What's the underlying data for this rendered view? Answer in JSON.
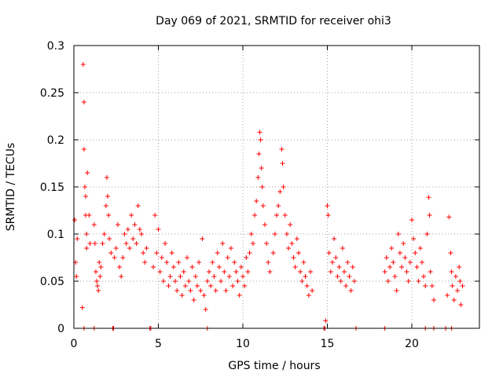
{
  "chart_data": {
    "type": "scatter",
    "title": "Day 069 of 2021, SRMTID for receiver ohi3",
    "xlabel": "GPS time / hours",
    "ylabel": "SRMTID / TECUs",
    "xlim": [
      0,
      24
    ],
    "ylim": [
      0,
      0.3
    ],
    "x_ticks": [
      0,
      5,
      10,
      15,
      20
    ],
    "x_tick_labels": [
      "0",
      "5",
      "10",
      "15",
      "20"
    ],
    "y_ticks": [
      0,
      0.05,
      0.1,
      0.15,
      0.2,
      0.25,
      0.3
    ],
    "y_tick_labels": [
      "0",
      "0.05",
      "0.1",
      "0.15",
      "0.2",
      "0.25",
      "0.3"
    ],
    "grid": true,
    "marker": "+",
    "series_color": "#ff0000",
    "series": [
      {
        "name": "SRMTID",
        "points": [
          [
            0.05,
            0.115
          ],
          [
            0.1,
            0.07
          ],
          [
            0.15,
            0.055
          ],
          [
            0.2,
            0.095
          ],
          [
            0.5,
            0.022
          ],
          [
            0.55,
            0.28
          ],
          [
            0.6,
            0.24
          ],
          [
            0.6,
            0.19
          ],
          [
            0.65,
            0.15
          ],
          [
            0.7,
            0.14
          ],
          [
            0.7,
            0.12
          ],
          [
            0.75,
            0.1
          ],
          [
            0.8,
            0.165
          ],
          [
            0.75,
            0.085
          ],
          [
            0.9,
            0.12
          ],
          [
            0.95,
            0.09
          ],
          [
            1.2,
            0.11
          ],
          [
            1.25,
            0.09
          ],
          [
            1.3,
            0.06
          ],
          [
            1.35,
            0.05
          ],
          [
            1.4,
            0.045
          ],
          [
            1.45,
            0.04
          ],
          [
            1.5,
            0.07
          ],
          [
            1.55,
            0.055
          ],
          [
            1.6,
            0.065
          ],
          [
            1.7,
            0.09
          ],
          [
            1.8,
            0.1
          ],
          [
            1.9,
            0.13
          ],
          [
            1.95,
            0.16
          ],
          [
            2.0,
            0.14
          ],
          [
            2.05,
            0.12
          ],
          [
            2.1,
            0.095
          ],
          [
            2.2,
            0.08
          ],
          [
            2.4,
            0.075
          ],
          [
            2.5,
            0.085
          ],
          [
            2.6,
            0.11
          ],
          [
            2.7,
            0.065
          ],
          [
            2.8,
            0.055
          ],
          [
            2.9,
            0.075
          ],
          [
            3.0,
            0.1
          ],
          [
            3.1,
            0.09
          ],
          [
            3.2,
            0.105
          ],
          [
            3.3,
            0.085
          ],
          [
            3.4,
            0.12
          ],
          [
            3.5,
            0.095
          ],
          [
            3.6,
            0.11
          ],
          [
            3.7,
            0.09
          ],
          [
            3.8,
            0.13
          ],
          [
            3.9,
            0.105
          ],
          [
            4.0,
            0.1
          ],
          [
            4.1,
            0.08
          ],
          [
            4.2,
            0.07
          ],
          [
            4.3,
            0.085
          ],
          [
            4.7,
            0.065
          ],
          [
            4.8,
            0.12
          ],
          [
            4.9,
            0.08
          ],
          [
            5.0,
            0.105
          ],
          [
            5.1,
            0.06
          ],
          [
            5.2,
            0.075
          ],
          [
            5.3,
            0.05
          ],
          [
            5.4,
            0.09
          ],
          [
            5.5,
            0.07
          ],
          [
            5.6,
            0.045
          ],
          [
            5.7,
            0.055
          ],
          [
            5.8,
            0.08
          ],
          [
            5.9,
            0.065
          ],
          [
            6.0,
            0.05
          ],
          [
            6.1,
            0.04
          ],
          [
            6.2,
            0.07
          ],
          [
            6.3,
            0.055
          ],
          [
            6.4,
            0.035
          ],
          [
            6.5,
            0.06
          ],
          [
            6.6,
            0.045
          ],
          [
            6.7,
            0.075
          ],
          [
            6.8,
            0.05
          ],
          [
            6.9,
            0.04
          ],
          [
            7.0,
            0.065
          ],
          [
            7.1,
            0.03
          ],
          [
            7.2,
            0.055
          ],
          [
            7.3,
            0.045
          ],
          [
            7.4,
            0.07
          ],
          [
            7.5,
            0.04
          ],
          [
            7.6,
            0.095
          ],
          [
            7.7,
            0.035
          ],
          [
            7.8,
            0.02
          ],
          [
            7.9,
            0.05
          ],
          [
            8.0,
            0.06
          ],
          [
            8.1,
            0.045
          ],
          [
            8.2,
            0.07
          ],
          [
            8.3,
            0.055
          ],
          [
            8.4,
            0.04
          ],
          [
            8.5,
            0.08
          ],
          [
            8.6,
            0.065
          ],
          [
            8.7,
            0.05
          ],
          [
            8.8,
            0.09
          ],
          [
            8.9,
            0.06
          ],
          [
            9.0,
            0.04
          ],
          [
            9.1,
            0.075
          ],
          [
            9.2,
            0.055
          ],
          [
            9.3,
            0.085
          ],
          [
            9.4,
            0.045
          ],
          [
            9.5,
            0.07
          ],
          [
            9.6,
            0.06
          ],
          [
            9.7,
            0.05
          ],
          [
            9.8,
            0.035
          ],
          [
            9.9,
            0.065
          ],
          [
            10.0,
            0.055
          ],
          [
            10.1,
            0.045
          ],
          [
            10.2,
            0.075
          ],
          [
            10.3,
            0.06
          ],
          [
            10.4,
            0.08
          ],
          [
            10.5,
            0.1
          ],
          [
            10.6,
            0.09
          ],
          [
            10.7,
            0.12
          ],
          [
            10.8,
            0.135
          ],
          [
            10.9,
            0.16
          ],
          [
            10.95,
            0.185
          ],
          [
            11.0,
            0.208
          ],
          [
            11.05,
            0.2
          ],
          [
            11.1,
            0.17
          ],
          [
            11.15,
            0.15
          ],
          [
            11.2,
            0.13
          ],
          [
            11.3,
            0.11
          ],
          [
            11.4,
            0.09
          ],
          [
            11.5,
            0.07
          ],
          [
            11.6,
            0.06
          ],
          [
            11.8,
            0.08
          ],
          [
            11.9,
            0.1
          ],
          [
            12.0,
            0.12
          ],
          [
            12.1,
            0.13
          ],
          [
            12.2,
            0.145
          ],
          [
            12.3,
            0.19
          ],
          [
            12.35,
            0.175
          ],
          [
            12.4,
            0.15
          ],
          [
            12.5,
            0.12
          ],
          [
            12.6,
            0.1
          ],
          [
            12.7,
            0.085
          ],
          [
            12.8,
            0.11
          ],
          [
            12.9,
            0.09
          ],
          [
            13.0,
            0.075
          ],
          [
            13.1,
            0.065
          ],
          [
            13.2,
            0.095
          ],
          [
            13.3,
            0.08
          ],
          [
            13.4,
            0.06
          ],
          [
            13.5,
            0.05
          ],
          [
            13.6,
            0.07
          ],
          [
            13.7,
            0.055
          ],
          [
            13.8,
            0.045
          ],
          [
            13.9,
            0.035
          ],
          [
            14.0,
            0.06
          ],
          [
            14.1,
            0.04
          ],
          [
            14.9,
            0.008
          ],
          [
            15.0,
            0.13
          ],
          [
            15.05,
            0.12
          ],
          [
            15.1,
            0.08
          ],
          [
            15.2,
            0.06
          ],
          [
            15.3,
            0.07
          ],
          [
            15.4,
            0.095
          ],
          [
            15.5,
            0.075
          ],
          [
            15.6,
            0.055
          ],
          [
            15.7,
            0.065
          ],
          [
            15.8,
            0.05
          ],
          [
            15.9,
            0.085
          ],
          [
            16.0,
            0.06
          ],
          [
            16.1,
            0.045
          ],
          [
            16.2,
            0.07
          ],
          [
            16.3,
            0.055
          ],
          [
            16.4,
            0.04
          ],
          [
            16.5,
            0.065
          ],
          [
            16.6,
            0.05
          ],
          [
            18.4,
            0.06
          ],
          [
            18.5,
            0.075
          ],
          [
            18.6,
            0.05
          ],
          [
            18.7,
            0.065
          ],
          [
            18.8,
            0.085
          ],
          [
            18.9,
            0.07
          ],
          [
            19.0,
            0.055
          ],
          [
            19.1,
            0.04
          ],
          [
            19.2,
            0.1
          ],
          [
            19.3,
            0.08
          ],
          [
            19.4,
            0.065
          ],
          [
            19.5,
            0.09
          ],
          [
            19.6,
            0.075
          ],
          [
            19.7,
            0.06
          ],
          [
            19.8,
            0.05
          ],
          [
            19.9,
            0.07
          ],
          [
            20.0,
            0.115
          ],
          [
            20.1,
            0.095
          ],
          [
            20.2,
            0.08
          ],
          [
            20.3,
            0.065
          ],
          [
            20.4,
            0.05
          ],
          [
            20.5,
            0.085
          ],
          [
            20.6,
            0.07
          ],
          [
            20.7,
            0.055
          ],
          [
            20.8,
            0.045
          ],
          [
            20.9,
            0.1
          ],
          [
            21.0,
            0.139
          ],
          [
            21.05,
            0.12
          ],
          [
            21.1,
            0.06
          ],
          [
            21.2,
            0.045
          ],
          [
            21.3,
            0.03
          ],
          [
            22.1,
            0.035
          ],
          [
            22.2,
            0.118
          ],
          [
            22.3,
            0.08
          ],
          [
            22.35,
            0.06
          ],
          [
            22.4,
            0.045
          ],
          [
            22.5,
            0.03
          ],
          [
            22.6,
            0.055
          ],
          [
            22.7,
            0.04
          ],
          [
            22.8,
            0.065
          ],
          [
            22.85,
            0.05
          ],
          [
            22.9,
            0.025
          ],
          [
            23.0,
            0.045
          ],
          [
            0.6,
            0.0
          ],
          [
            1.2,
            0.0
          ],
          [
            2.3,
            0.0
          ],
          [
            2.35,
            0.0
          ],
          [
            4.5,
            0.0
          ],
          [
            4.55,
            0.0
          ],
          [
            7.9,
            0.0
          ],
          [
            14.8,
            0.0
          ],
          [
            14.85,
            0.0
          ],
          [
            16.7,
            0.0
          ],
          [
            18.4,
            0.0
          ],
          [
            20.8,
            0.0
          ],
          [
            21.3,
            0.0
          ],
          [
            22.0,
            0.0
          ],
          [
            22.35,
            0.0
          ]
        ]
      }
    ]
  }
}
